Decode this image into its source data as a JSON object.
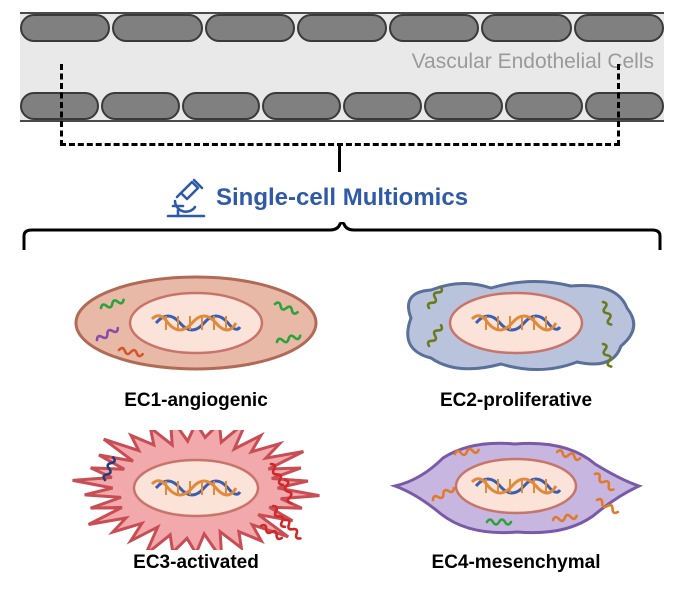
{
  "vessel": {
    "label": "Vascular Endothelial Cells",
    "label_color": "#9a9a9a",
    "label_fontsize": 21,
    "bg_color": "#e9e9e9",
    "border_color": "#4a4a4a",
    "cell_fill": "#808080",
    "cell_stroke": "#3a3a3a",
    "top_row_count": 7,
    "bottom_row_count": 8
  },
  "dashed_box": {
    "stroke": "#000000",
    "dash": "10 6",
    "stroke_width": 3
  },
  "method": {
    "label": "Single-cell Multiomics",
    "label_color": "#2f5aa8",
    "label_fontsize": 24,
    "icon_stroke": "#2f5aa8",
    "icon_name": "microscope-icon"
  },
  "bracket": {
    "stroke": "#000000",
    "stroke_width": 3
  },
  "nucleus": {
    "fill": "#fbe3da",
    "stroke": "#c9746a",
    "dna_blue": "#3b5fb0",
    "dna_orange": "#e08a3c"
  },
  "cells": {
    "ec1": {
      "caption": "EC1-angiogenic",
      "type": "ellipse",
      "body_fill": "#e9b9a8",
      "body_stroke": "#b06a55",
      "rna_colors": [
        "#2aa33a",
        "#2aa33a",
        "#8a4aa8",
        "#d4562a",
        "#2aa33a"
      ]
    },
    "ec2": {
      "caption": "EC2-proliferative",
      "type": "blob",
      "body_fill": "#b9c4dc",
      "body_stroke": "#5a6f9a",
      "rna_colors": [
        "#6b7a1e",
        "#6b7a1e",
        "#6b7a1e",
        "#6b7a1e"
      ]
    },
    "ec3": {
      "caption": "EC3-activated",
      "type": "spiky",
      "body_fill": "#f2a9ab",
      "body_stroke": "#c84d55",
      "rna_colors": [
        "#2a3a7a",
        "#d22828",
        "#d22828",
        "#d22828",
        "#d22828",
        "#d22828"
      ]
    },
    "ec4": {
      "caption": "EC4-mesenchymal",
      "type": "diamond",
      "body_fill": "#c7b6e0",
      "body_stroke": "#7a5aa8",
      "rna_colors": [
        "#e07a2a",
        "#e07a2a",
        "#e07a2a",
        "#e07a2a",
        "#2aa33a",
        "#e07a2a",
        "#e07a2a"
      ]
    }
  }
}
